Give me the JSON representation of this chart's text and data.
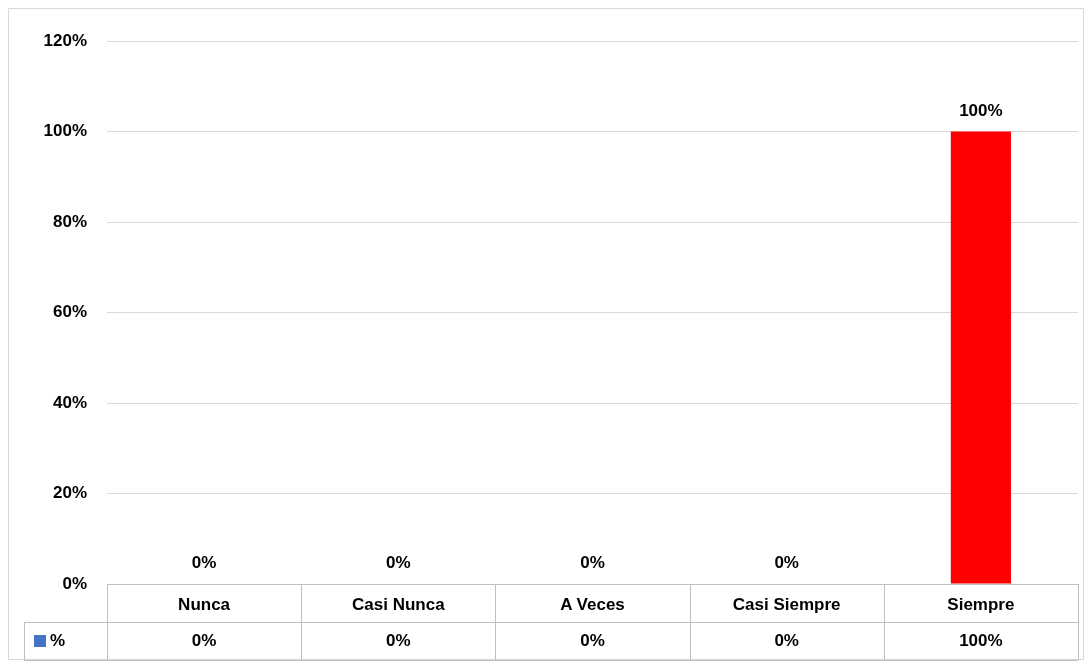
{
  "chart_data": {
    "type": "bar",
    "categories": [
      "Nunca",
      "Casi Nunca",
      "A Veces",
      "Casi Siempre",
      "Siempre"
    ],
    "series": [
      {
        "name": "%",
        "color": "#4472c4",
        "colors": [
          "#4472c4",
          "#4472c4",
          "#4472c4",
          "#4472c4",
          "#ff0000"
        ],
        "values": [
          0,
          0,
          0,
          0,
          100
        ],
        "value_labels": [
          "0%",
          "0%",
          "0%",
          "0%",
          "100%"
        ]
      }
    ],
    "ylim": [
      0,
      120
    ],
    "yticks": [
      {
        "value": 0,
        "label": "0%"
      },
      {
        "value": 20,
        "label": "20%"
      },
      {
        "value": 40,
        "label": "40%"
      },
      {
        "value": 60,
        "label": "60%"
      },
      {
        "value": 80,
        "label": "80%"
      },
      {
        "value": 100,
        "label": "100%"
      },
      {
        "value": 120,
        "label": "120%"
      }
    ],
    "grid": "y",
    "legend": "bottom",
    "data_labels": true
  }
}
